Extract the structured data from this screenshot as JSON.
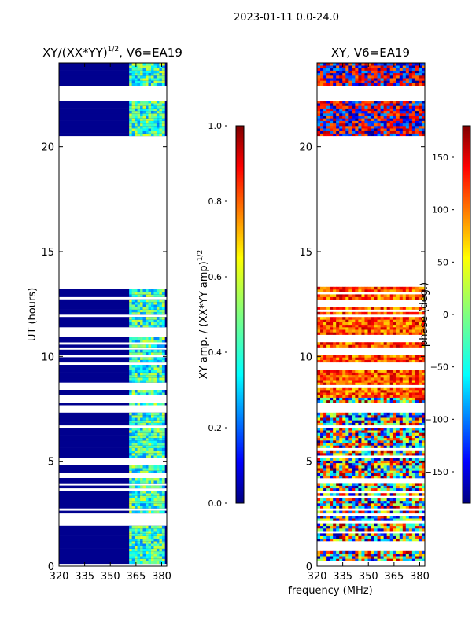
{
  "suptitle": "2023-01-11 0.0-24.0",
  "chart_data": [
    {
      "type": "heatmap",
      "title_main": "XY/(XX*YY)",
      "title_sup": "1/2",
      "title_rest": ", V6=EA19",
      "ylabel": "UT (hours)",
      "x_ticks": [
        "320",
        "335",
        "350",
        "365",
        "380"
      ],
      "x_tick_values": [
        320,
        335,
        350,
        365,
        380
      ],
      "y_ticks": [
        "0",
        "5",
        "10",
        "15",
        "20"
      ],
      "y_tick_values": [
        0,
        5,
        10,
        15,
        20
      ],
      "xlim": [
        320,
        383
      ],
      "ylim": [
        0,
        24
      ],
      "colorbar": {
        "label_main": "XY amp. / (XX*YY amp)",
        "label_sup": "1/2",
        "range": [
          0.0,
          1.0
        ],
        "ticks": [
          "0.0",
          "0.2",
          "0.4",
          "0.6",
          "0.8",
          "1.0"
        ],
        "tick_values": [
          0.0,
          0.2,
          0.4,
          0.6,
          0.8,
          1.0
        ]
      },
      "data_gaps_hours": [
        [
          13.4,
          20.4
        ],
        [
          22.2,
          22.9
        ],
        [
          7.3,
          7.6
        ]
      ],
      "high_amplitude_band_mhz": [
        361,
        381
      ]
    },
    {
      "type": "heatmap",
      "title": "XY, V6=EA19",
      "xlabel": "frequency (MHz)",
      "x_ticks": [
        "320",
        "335",
        "350",
        "365",
        "380"
      ],
      "x_tick_values": [
        320,
        335,
        350,
        365,
        380
      ],
      "y_ticks": [
        "0",
        "5",
        "10",
        "15",
        "20"
      ],
      "y_tick_values": [
        0,
        5,
        10,
        15,
        20
      ],
      "xlim": [
        320,
        383
      ],
      "ylim": [
        0,
        24
      ],
      "colorbar": {
        "label": "phase (deg.)",
        "range": [
          -180,
          180
        ],
        "ticks": [
          "−150",
          "−100",
          "−50",
          "0",
          "50",
          "100",
          "150"
        ],
        "tick_values": [
          -150,
          -100,
          -50,
          0,
          50,
          100,
          150
        ]
      },
      "data_gaps_hours": [
        [
          13.4,
          20.4
        ],
        [
          22.2,
          22.9
        ],
        [
          7.3,
          7.6
        ]
      ]
    }
  ],
  "colors": {
    "jet": [
      "#00007f",
      "#0000ff",
      "#007fff",
      "#00ffff",
      "#7fff7f",
      "#ffff00",
      "#ff7f00",
      "#ff0000",
      "#7f0000"
    ]
  }
}
